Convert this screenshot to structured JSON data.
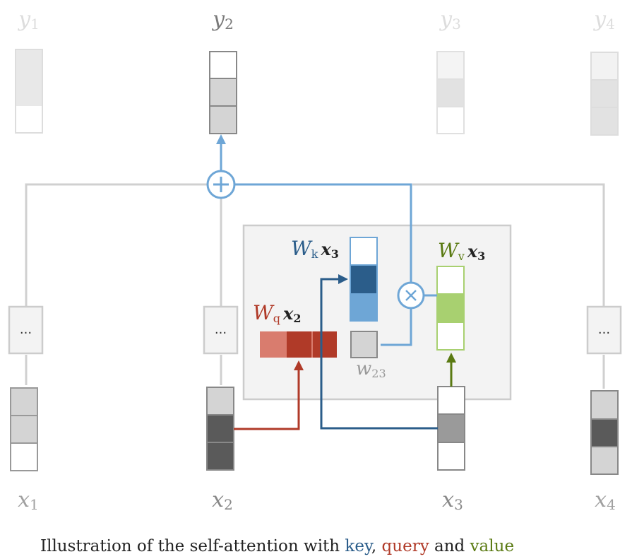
{
  "colors": {
    "key": "#2b5d8a",
    "key_light": "#6ea6d6",
    "query": "#b03a28",
    "query_light": "#d97c6e",
    "value": "#5a7a12",
    "value_light": "#a8d070",
    "inactive": "#cfcfcf",
    "connector": "#d0d0d0",
    "box_bg": "#f3f3f3"
  },
  "outputs": [
    {
      "label": "y",
      "sub": "1"
    },
    {
      "label": "y",
      "sub": "2"
    },
    {
      "label": "y",
      "sub": "3"
    },
    {
      "label": "y",
      "sub": "4"
    }
  ],
  "inputs": [
    {
      "label": "x",
      "sub": "1"
    },
    {
      "label": "x",
      "sub": "2"
    },
    {
      "label": "x",
      "sub": "3"
    },
    {
      "label": "x",
      "sub": "4"
    }
  ],
  "ellipsis": "...",
  "key_label": {
    "w": "W",
    "sub": "k",
    "x": "x",
    "xsub": "3"
  },
  "query_label": {
    "w": "W",
    "sub": "q",
    "x": "x",
    "xsub": "2"
  },
  "value_label": {
    "w": "W",
    "sub": "v",
    "x": "x",
    "xsub": "3"
  },
  "weight_label": {
    "w": "w",
    "sub": "23"
  },
  "plus_symbol": "+",
  "times_symbol": "×",
  "caption": {
    "prefix": "Illustration of the self-attention with ",
    "key": "key",
    "sep1": ", ",
    "query": "query",
    "sep2": " and ",
    "value": "value"
  }
}
